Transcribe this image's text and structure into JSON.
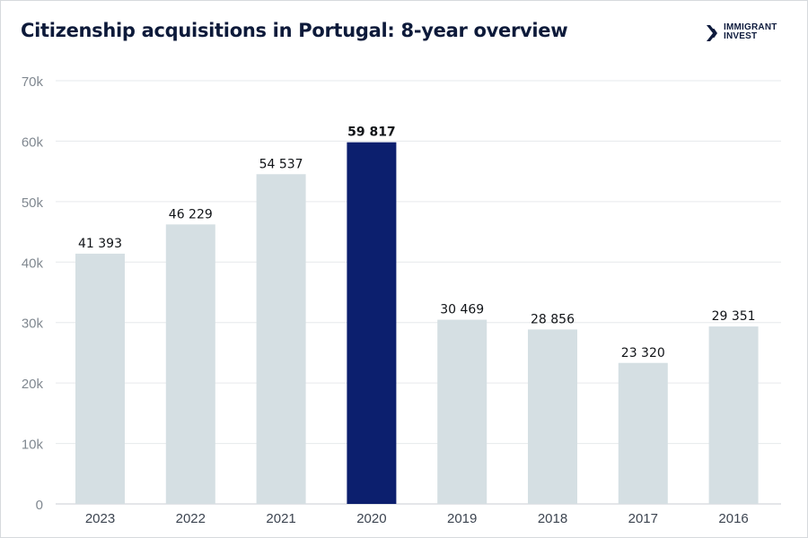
{
  "brand": {
    "line1": "IMMIGRANT",
    "line2": "INVEST",
    "icon": "chevron-logo-icon",
    "color": "#0e1b3d"
  },
  "chart_data": {
    "type": "bar",
    "title": "Citizenship acquisitions in Portugal: 8-year overview",
    "xlabel": "",
    "ylabel": "",
    "categories": [
      "2023",
      "2022",
      "2021",
      "2020",
      "2019",
      "2018",
      "2017",
      "2016"
    ],
    "values": [
      41393,
      46229,
      54537,
      59817,
      30469,
      28856,
      23320,
      29351
    ],
    "value_labels": [
      "41 393",
      "46 229",
      "54 537",
      "59 817",
      "30 469",
      "28 856",
      "23 320",
      "29 351"
    ],
    "highlight_category": "2020",
    "ylim": [
      0,
      70000
    ],
    "yticks": [
      0,
      10000,
      20000,
      30000,
      40000,
      50000,
      60000,
      70000
    ],
    "ytick_labels": [
      "0",
      "10k",
      "20k",
      "30k",
      "40k",
      "50k",
      "60k",
      "70k"
    ],
    "grid": true,
    "legend": "none",
    "colors": {
      "bar": "#d5dfe3",
      "highlight": "#0c1f6e",
      "grid": "#e6e9ec"
    }
  }
}
